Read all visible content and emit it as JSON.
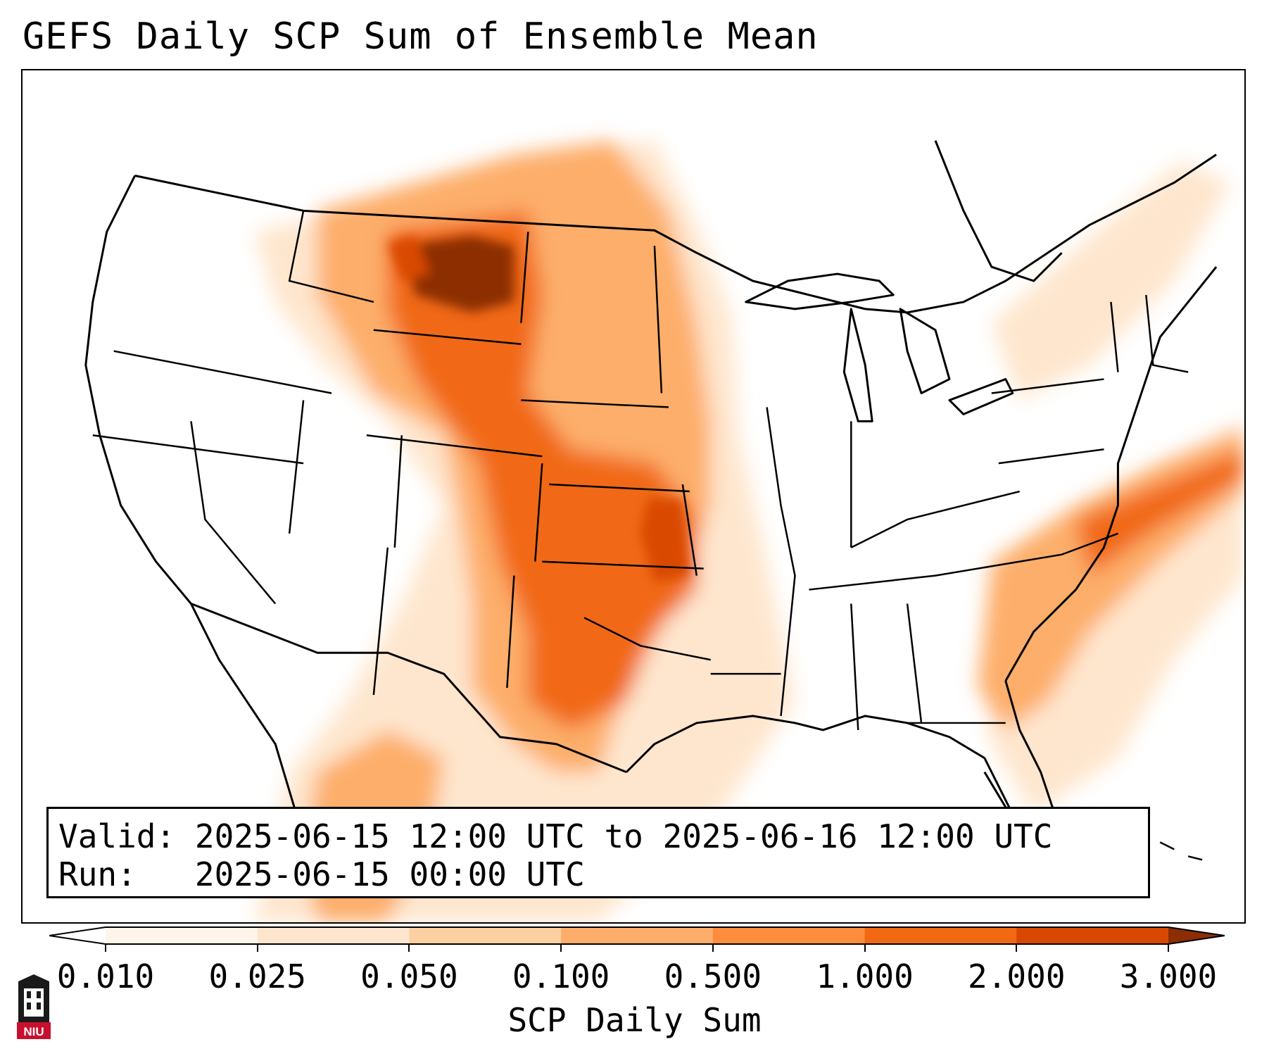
{
  "title": "GEFS Daily SCP Sum of Ensemble Mean",
  "info": {
    "valid_label": "Valid:",
    "valid_value": "2025-06-15 12:00 UTC to 2025-06-16 12:00 UTC",
    "run_label": "Run:",
    "run_value": "2025-06-15 00:00 UTC"
  },
  "colorbar": {
    "label": "SCP Daily Sum",
    "ticks": [
      "0.010",
      "0.025",
      "0.050",
      "0.100",
      "0.500",
      "1.000",
      "2.000",
      "3.000"
    ],
    "colors": [
      "#fff5eb",
      "#fee6ce",
      "#fdd0a2",
      "#fdae6b",
      "#fd8d3c",
      "#f16913",
      "#d94801",
      "#8c2d04"
    ]
  },
  "logo": {
    "text": "NIU",
    "icon": "niu-logo-icon",
    "color": "#c8102e"
  }
}
